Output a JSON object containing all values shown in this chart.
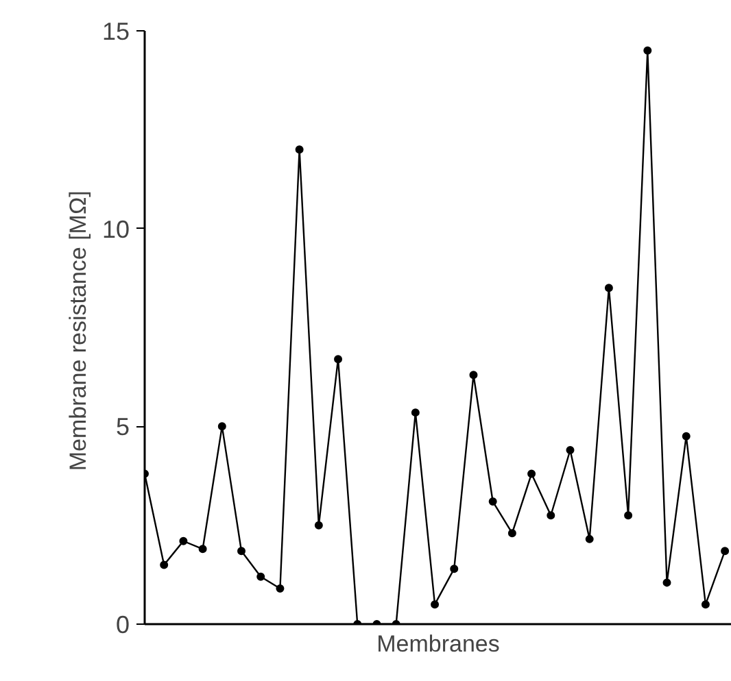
{
  "chart_data": {
    "type": "line",
    "xlabel": "Membranes",
    "ylabel": "Membrane resistance  [MΩ]",
    "categories": [
      null,
      null,
      null,
      null,
      null,
      null,
      null,
      null,
      null,
      null,
      null,
      null,
      null,
      null,
      null,
      null,
      null,
      null,
      null,
      null,
      null,
      null,
      null,
      null,
      null,
      null,
      null,
      null,
      null,
      null,
      null
    ],
    "series": [
      {
        "color": "#000000",
        "values": [
          3.8,
          1.5,
          2.1,
          1.9,
          5.0,
          1.85,
          1.2,
          0.9,
          12.0,
          2.5,
          6.7,
          0,
          0,
          0,
          5.35,
          0.5,
          1.4,
          6.3,
          3.1,
          2.3,
          3.8,
          2.75,
          4.4,
          2.15,
          8.5,
          2.75,
          14.5,
          1.05,
          4.75,
          0.5,
          1.85
        ]
      }
    ],
    "ylim": [
      0,
      15
    ],
    "yticks": [
      0,
      5,
      10,
      15
    ],
    "grid": false,
    "marker": "circle",
    "line_style": "solid",
    "tick_labels": "y"
  }
}
